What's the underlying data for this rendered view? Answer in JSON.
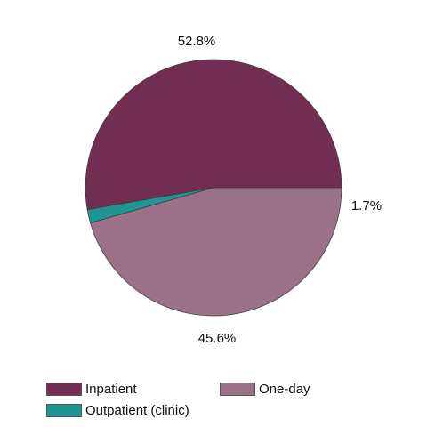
{
  "chart_data": {
    "type": "pie",
    "slices": [
      {
        "name": "Inpatient",
        "value": 52.8,
        "label": "52.8%",
        "color": "#722D53"
      },
      {
        "name": "Outpatient (clinic)",
        "value": 1.7,
        "label": "1.7%",
        "color": "#1F9490"
      },
      {
        "name": "One-day",
        "value": 45.6,
        "label": "45.6%",
        "color": "#9A7187"
      }
    ],
    "start": "3 o'clock",
    "direction": "counterclockwise",
    "legend_position": "bottom",
    "legend": [
      {
        "name": "Inpatient",
        "color": "#722D53"
      },
      {
        "name": "One-day",
        "color": "#9A7187"
      },
      {
        "name": "Outpatient (clinic)",
        "color": "#1F9490"
      }
    ]
  }
}
